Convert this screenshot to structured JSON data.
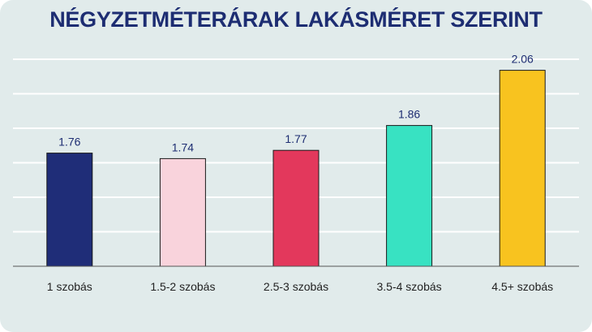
{
  "chart_data": {
    "type": "bar",
    "title": "NÉGYZETMÉTERÁRAK LAKÁSMÉRET SZERINT",
    "categories": [
      "1 szobás",
      "1.5-2 szobás",
      "2.5-3 szobás",
      "3.5-4 szobás",
      "4.5+ szobás"
    ],
    "values": [
      1.76,
      1.74,
      1.77,
      1.86,
      2.06
    ],
    "value_labels": [
      "1.76",
      "1.74",
      "1.77",
      "1.86",
      "2.06"
    ],
    "colors": [
      "#1f2d78",
      "#f9d3dc",
      "#e3385c",
      "#38e2c2",
      "#f8c31f"
    ],
    "ylim": [
      1.35,
      2.1
    ],
    "grid": true,
    "xlabel": "",
    "ylabel": "",
    "background": "#e1ebeb",
    "title_color": "#1d2d72"
  }
}
